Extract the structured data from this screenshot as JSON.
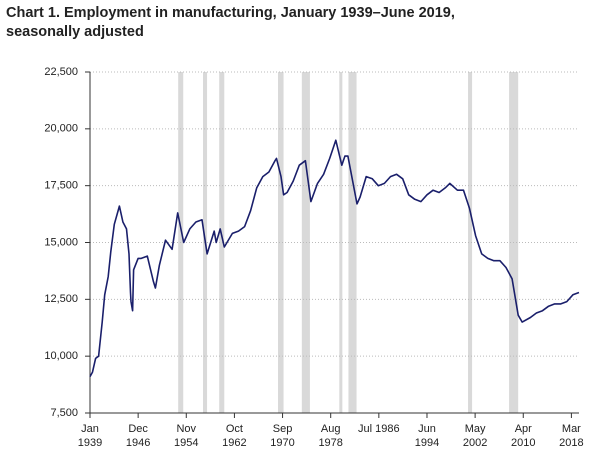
{
  "chart_data": {
    "type": "line",
    "title": "Chart 1. Employment in manufacturing, January 1939–June 2019, seasonally adjusted",
    "color": "#1a1f6b",
    "recession_color": "#d9d9d9",
    "grid": true,
    "xlim": [
      "1939-01",
      "2019-06"
    ],
    "ylim": [
      7500,
      22500
    ],
    "yticks": [
      {
        "value": 7500,
        "label": "7,500"
      },
      {
        "value": 10000,
        "label": "10,000"
      },
      {
        "value": 12500,
        "label": "12,500"
      },
      {
        "value": 15000,
        "label": "15,000"
      },
      {
        "value": 17500,
        "label": "17,500"
      },
      {
        "value": 20000,
        "label": "20,000"
      },
      {
        "value": 22500,
        "label": "22,500"
      }
    ],
    "xticks": [
      {
        "value": "1939-01",
        "label": "Jan\n1939"
      },
      {
        "value": "1946-12",
        "label": "Dec\n1946"
      },
      {
        "value": "1954-11",
        "label": "Nov\n1954"
      },
      {
        "value": "1962-10",
        "label": "Oct\n1962"
      },
      {
        "value": "1970-09",
        "label": "Sep\n1970"
      },
      {
        "value": "1978-08",
        "label": "Aug\n1978"
      },
      {
        "value": "1986-07",
        "label": "Jul 1986"
      },
      {
        "value": "1994-06",
        "label": "Jun\n1994"
      },
      {
        "value": "2002-05",
        "label": "May\n2002"
      },
      {
        "value": "2010-04",
        "label": "Apr\n2010"
      },
      {
        "value": "2018-03",
        "label": "Mar\n2018"
      }
    ],
    "recessions": [
      [
        "1953-07",
        "1954-05"
      ],
      [
        "1957-08",
        "1958-04"
      ],
      [
        "1960-04",
        "1961-02"
      ],
      [
        "1969-12",
        "1970-11"
      ],
      [
        "1973-11",
        "1975-03"
      ],
      [
        "1980-01",
        "1980-07"
      ],
      [
        "1981-07",
        "1982-11"
      ],
      [
        "2001-03",
        "2001-11"
      ],
      [
        "2007-12",
        "2009-06"
      ]
    ],
    "x": [
      "1939-01",
      "1939-06",
      "1939-12",
      "1940-06",
      "1941-01",
      "1941-06",
      "1942-01",
      "1942-06",
      "1943-01",
      "1943-11",
      "1944-06",
      "1945-01",
      "1945-06",
      "1945-09",
      "1945-10",
      "1946-01",
      "1946-03",
      "1946-12",
      "1947-06",
      "1948-06",
      "1949-06",
      "1949-10",
      "1950-06",
      "1951-06",
      "1952-07",
      "1953-06",
      "1954-06",
      "1955-06",
      "1956-06",
      "1957-06",
      "1958-04",
      "1959-06",
      "1959-10",
      "1960-06",
      "1961-02",
      "1962-06",
      "1963-06",
      "1964-06",
      "1965-06",
      "1966-06",
      "1967-06",
      "1968-06",
      "1969-06",
      "1969-09",
      "1970-06",
      "1970-11",
      "1971-06",
      "1972-06",
      "1973-06",
      "1974-06",
      "1975-05",
      "1976-06",
      "1977-06",
      "1978-06",
      "1979-06",
      "1980-06",
      "1980-12",
      "1981-06",
      "1982-12",
      "1983-06",
      "1984-06",
      "1985-06",
      "1986-06",
      "1987-06",
      "1988-06",
      "1989-06",
      "1990-06",
      "1991-06",
      "1992-06",
      "1993-06",
      "1994-06",
      "1995-06",
      "1996-06",
      "1997-06",
      "1998-03",
      "1999-06",
      "2000-06",
      "2001-06",
      "2002-06",
      "2003-06",
      "2004-06",
      "2005-06",
      "2006-06",
      "2007-06",
      "2008-06",
      "2009-06",
      "2010-02",
      "2011-06",
      "2012-06",
      "2013-06",
      "2014-06",
      "2015-06",
      "2016-06",
      "2017-06",
      "2018-06",
      "2019-06"
    ],
    "values": [
      9100,
      9300,
      9900,
      10000,
      11500,
      12700,
      13500,
      14600,
      15800,
      16600,
      15900,
      15600,
      14500,
      12800,
      12400,
      12000,
      13800,
      14300,
      14300,
      14400,
      13300,
      13000,
      14000,
      15100,
      14700,
      16300,
      15000,
      15600,
      15900,
      16000,
      14500,
      15500,
      15000,
      15600,
      14800,
      15400,
      15500,
      15700,
      16400,
      17400,
      17900,
      18100,
      18600,
      18700,
      17900,
      17100,
      17200,
      17700,
      18400,
      18600,
      16800,
      17600,
      18000,
      18700,
      19500,
      18400,
      18800,
      18800,
      16700,
      17000,
      17900,
      17800,
      17500,
      17600,
      17900,
      18000,
      17800,
      17100,
      16900,
      16800,
      17100,
      17300,
      17200,
      17400,
      17600,
      17300,
      17300,
      16500,
      15300,
      14500,
      14300,
      14200,
      14200,
      13900,
      13400,
      11800,
      11500,
      11700,
      11900,
      12000,
      12200,
      12300,
      12300,
      12400,
      12700,
      12800
    ]
  }
}
